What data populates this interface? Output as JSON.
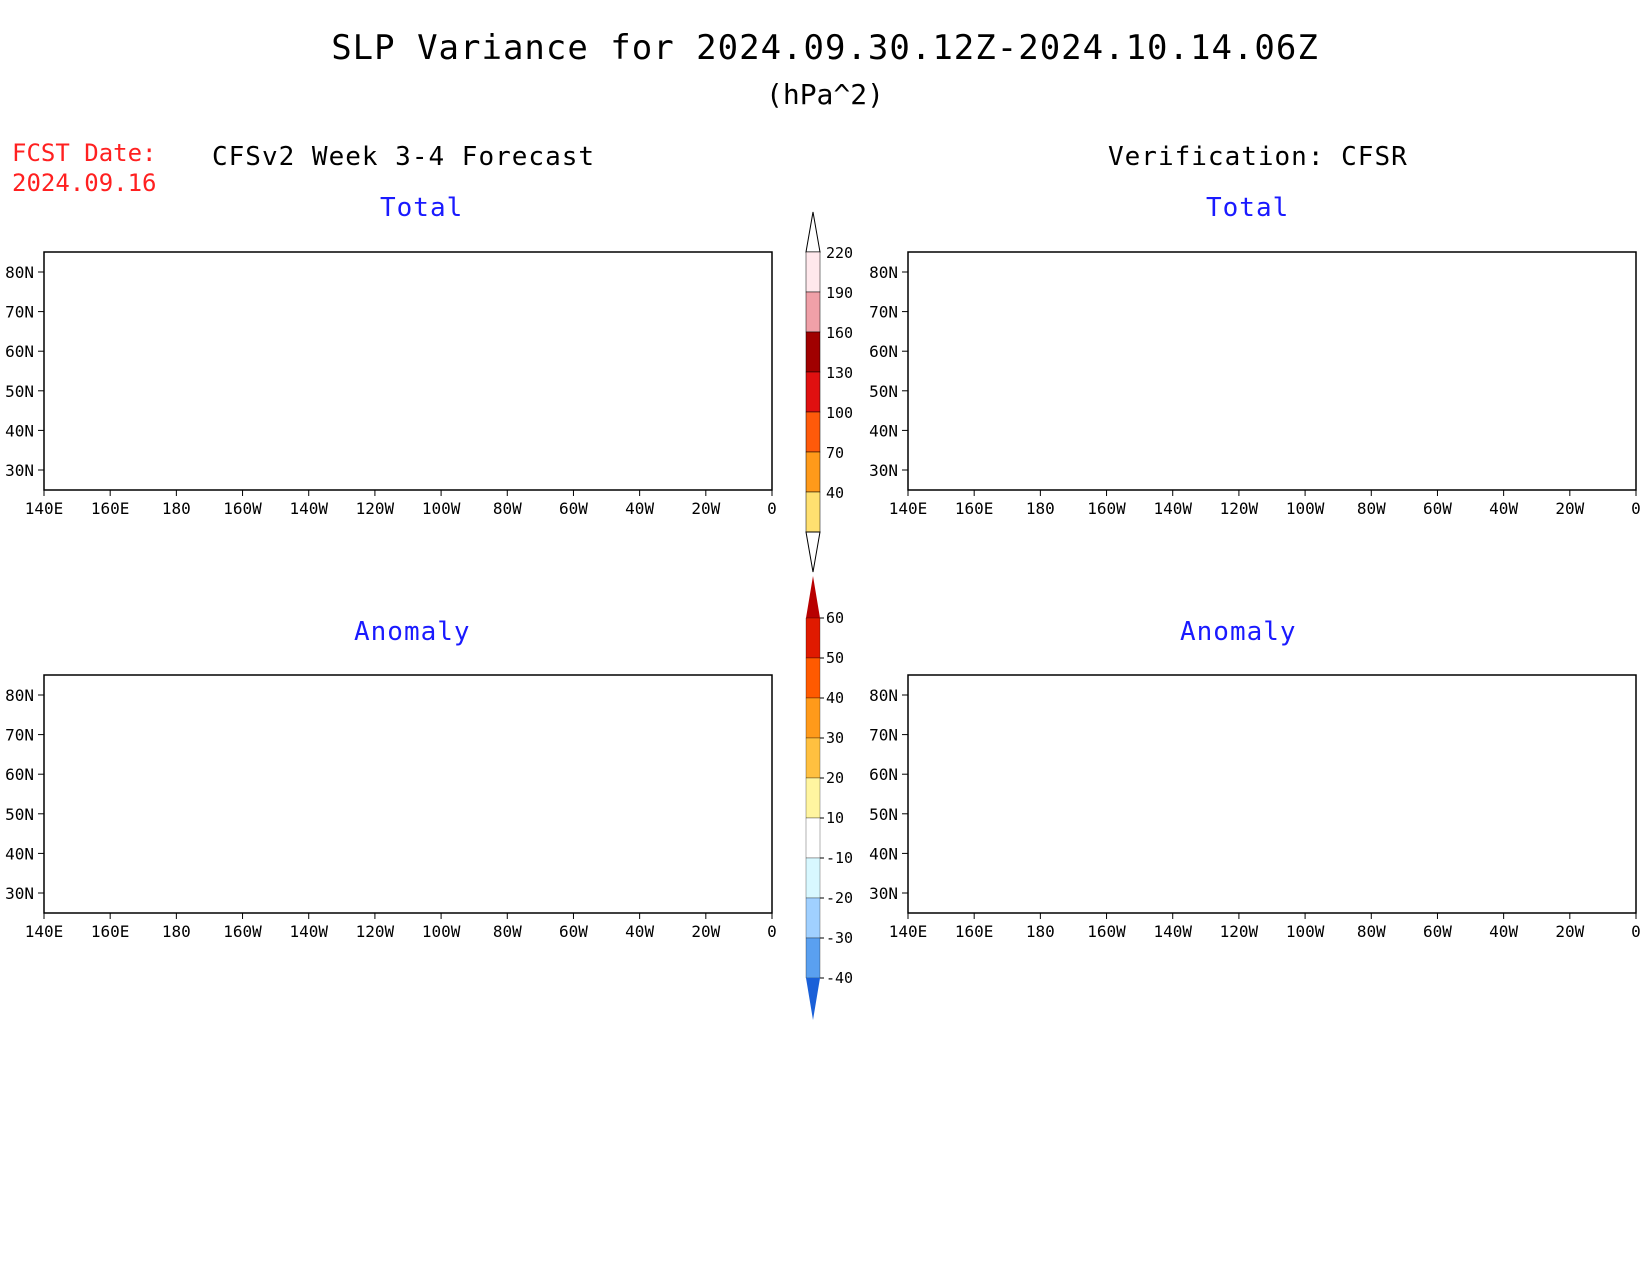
{
  "title": "SLP Variance for 2024.09.30.12Z-2024.10.14.06Z",
  "units": "(hPa^2)",
  "fcst_date_label": "FCST Date:",
  "fcst_date_value": "2024.09.16",
  "left_header": "CFSv2 Week 3-4 Forecast",
  "right_header": "Verification: CFSR",
  "panels": [
    {
      "id": "forecast-total",
      "title": "Total"
    },
    {
      "id": "verification-total",
      "title": "Total"
    },
    {
      "id": "forecast-anomaly",
      "title": "Anomaly"
    },
    {
      "id": "verification-anomaly",
      "title": "Anomaly"
    }
  ],
  "lat_labels": [
    "80N",
    "70N",
    "60N",
    "50N",
    "40N",
    "30N"
  ],
  "lon_labels": [
    "140E",
    "160E",
    "180",
    "160W",
    "140W",
    "120W",
    "100W",
    "80W",
    "60W",
    "40W",
    "20W",
    "0"
  ],
  "total_colorbar": {
    "labels": [
      "220",
      "190",
      "160",
      "130",
      "100",
      "70",
      "40"
    ],
    "colors": [
      "#ffe8ec",
      "#f0a0a8",
      "#a00000",
      "#e01010",
      "#ff5a0a",
      "#ff9a1a",
      "#ffe070"
    ]
  },
  "anomaly_colorbar": {
    "labels": [
      "60",
      "50",
      "40",
      "30",
      "20",
      "10",
      "-10",
      "-20",
      "-30",
      "-40"
    ],
    "colors": [
      "#b80000",
      "#e01a00",
      "#ff5a00",
      "#ff9a1a",
      "#ffc040",
      "#fff5a0",
      "#ffffff",
      "#d8f8ff",
      "#a0d0ff",
      "#5aa0f0",
      "#1a60d8"
    ]
  },
  "colors": {
    "title_red": "#ff2020",
    "panel_title_blue": "#1a1aff"
  }
}
